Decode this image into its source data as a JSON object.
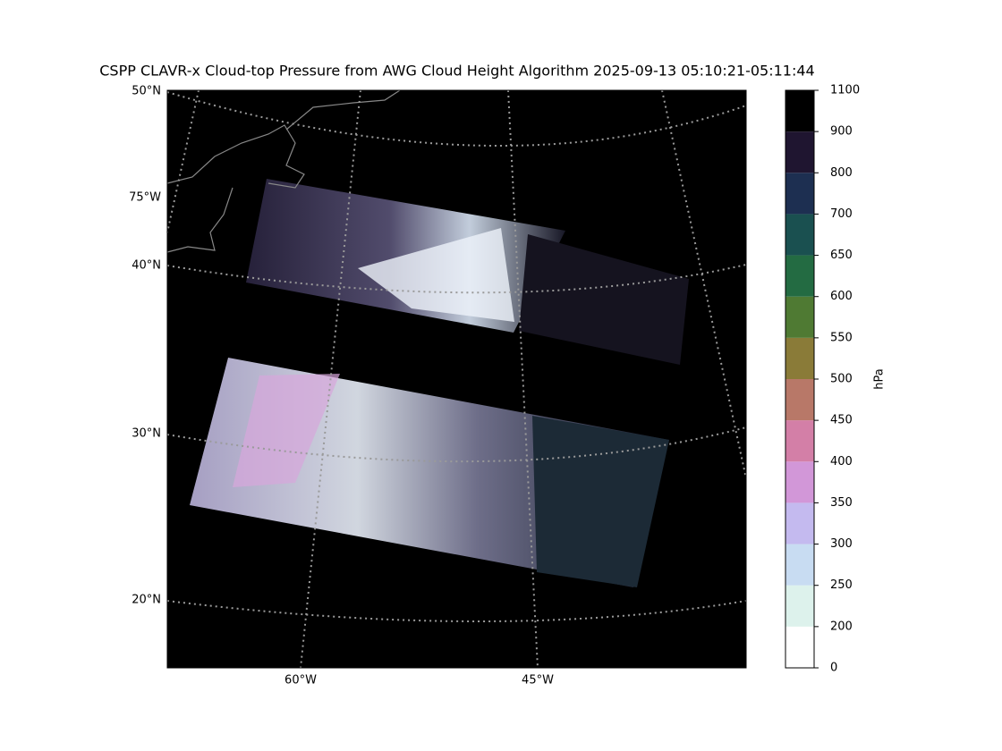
{
  "title": "CSPP CLAVR-x Cloud-top Pressure from AWG Cloud Height Algorithm 2025-09-13 05:10:21-05:11:44",
  "map": {
    "lat_labels": [
      "50°N",
      "75°W",
      "40°N",
      "30°N",
      "20°N"
    ],
    "lon_labels": [
      "60°W",
      "45°W"
    ]
  },
  "colorbar": {
    "label": "hPa",
    "ticks": [
      0,
      200,
      250,
      300,
      350,
      400,
      450,
      500,
      550,
      600,
      650,
      700,
      800,
      900,
      1100
    ],
    "colors": [
      "#ffffff",
      "#ddf2ec",
      "#c8dcf2",
      "#c4baef",
      "#d297d8",
      "#d37fa7",
      "#b87868",
      "#8a7b38",
      "#4f7a33",
      "#236b42",
      "#1a5050",
      "#1d2f51",
      "#1f1530",
      "#000000"
    ]
  }
}
